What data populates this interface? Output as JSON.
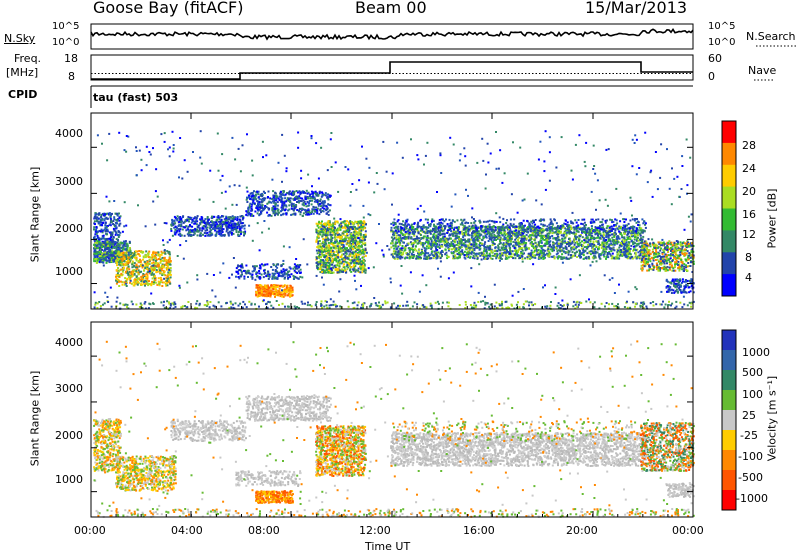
{
  "header": {
    "station": "Goose Bay (fitACF)",
    "beam": "Beam 00",
    "date": "15/Mar/2013"
  },
  "noise_panel": {
    "left_label": "N.Sky",
    "right_label": "N.Search",
    "left_ticks": [
      "10^5",
      "10^0"
    ],
    "right_ticks": [
      "10^5",
      "10^0"
    ]
  },
  "freq_panel": {
    "left_label_top": "Freq.",
    "left_label_bottom": "[MHz]",
    "right_label": "Nave",
    "left_ticks": [
      "18",
      "8"
    ],
    "right_ticks": [
      "60",
      "0"
    ],
    "cpid_label": "CPID",
    "cpid_value": "tau (fast) 503"
  },
  "chart_data": [
    {
      "type": "heatmap",
      "name": "power",
      "ylabel": "Slant Range [km]",
      "yticks": [
        "4000",
        "3000",
        "2000",
        "1000"
      ],
      "ylim": [
        200,
        4500
      ],
      "colorbar_label": "Power [dB]",
      "colorbar_ticks": [
        "28",
        "24",
        "20",
        "16",
        "12",
        "8",
        "4"
      ],
      "colorbar_colors": [
        "#ff0000",
        "#ff8800",
        "#ffcc00",
        "#aadd22",
        "#33bb33",
        "#338866",
        "#2244aa",
        "#0000ff"
      ]
    },
    {
      "type": "heatmap",
      "name": "velocity",
      "ylabel": "Slant Range [km]",
      "yticks": [
        "4000",
        "3000",
        "2000",
        "1000"
      ],
      "ylim": [
        200,
        4500
      ],
      "colorbar_label": "Velocity [m s⁻¹]",
      "colorbar_ticks": [
        "1000",
        "500",
        "100",
        "25",
        "-25",
        "-100",
        "-500",
        "-1000"
      ],
      "colorbar_colors": [
        "#2233bb",
        "#3366aa",
        "#338866",
        "#66bb33",
        "#c8c8c8",
        "#ffcc00",
        "#ff8800",
        "#ff5500",
        "#ff0000"
      ]
    }
  ],
  "x_axis": {
    "ticks": [
      "00:00",
      "04:00",
      "08:00",
      "12:00",
      "16:00",
      "20:00",
      "00:00"
    ],
    "label": "Time UT"
  }
}
